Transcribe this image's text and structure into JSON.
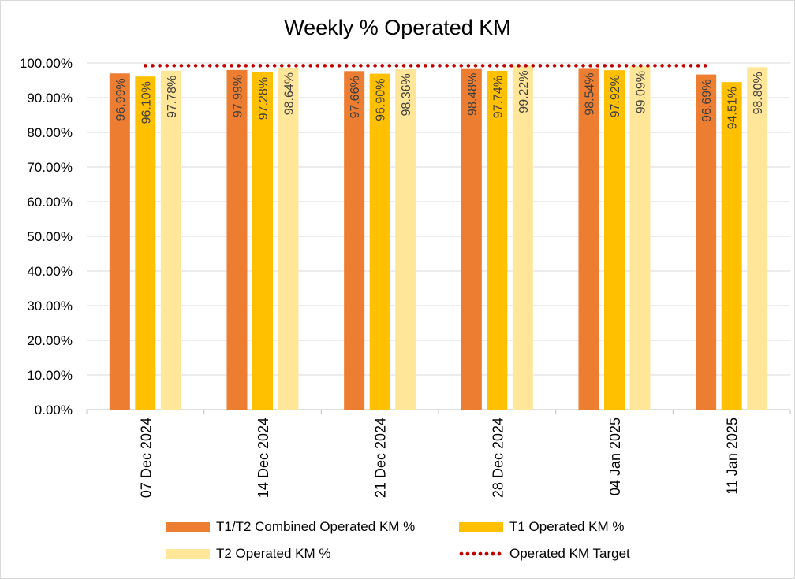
{
  "chart_data": {
    "type": "bar",
    "title": "Weekly % Operated KM",
    "categories": [
      "07 Dec 2024",
      "14 Dec 2024",
      "21 Dec 2024",
      "28 Dec 2024",
      "04 Jan 2025",
      "11 Jan 2025"
    ],
    "series": [
      {
        "name": "T1/T2 Combined Operated KM %",
        "color": "#ED7D31",
        "values": [
          96.99,
          97.99,
          97.66,
          98.48,
          98.54,
          96.69
        ],
        "labels": [
          "96.99%",
          "97.99%",
          "97.66%",
          "98.48%",
          "98.54%",
          "96.69%"
        ]
      },
      {
        "name": "T1 Operated KM %",
        "color": "#FFC000",
        "values": [
          96.1,
          97.28,
          96.9,
          97.74,
          97.92,
          94.51
        ],
        "labels": [
          "96.10%",
          "97.28%",
          "96.90%",
          "97.74%",
          "97.92%",
          "94.51%"
        ]
      },
      {
        "name": "T2 Operated KM %",
        "color": "#FFE699",
        "values": [
          97.78,
          98.64,
          98.36,
          99.22,
          99.09,
          98.8
        ],
        "labels": [
          "97.78%",
          "98.64%",
          "98.36%",
          "99.22%",
          "99.09%",
          "98.80%"
        ]
      }
    ],
    "target": {
      "name": "Operated KM Target",
      "color": "#C00000",
      "value": 99
    },
    "ylim": [
      0,
      100
    ],
    "yticks": [
      "0.00%",
      "10.00%",
      "20.00%",
      "30.00%",
      "40.00%",
      "50.00%",
      "60.00%",
      "70.00%",
      "80.00%",
      "90.00%",
      "100.00%"
    ],
    "xlabel": "",
    "ylabel": "",
    "legend_position": "bottom"
  }
}
